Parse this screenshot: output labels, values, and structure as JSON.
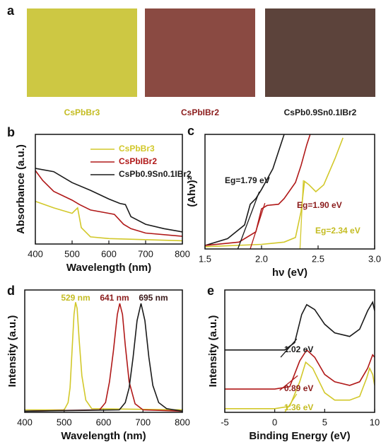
{
  "photos": {
    "panel_label": "a",
    "samples": [
      {
        "label": "CsPbBr3",
        "color": "#cdc843",
        "label_color": "#c4bc22"
      },
      {
        "label": "CsPbIBr2",
        "color": "#8a4a42",
        "label_color": "#8b1c1c"
      },
      {
        "label": "CsPb0.9Sn0.1IBr2",
        "color": "#5c433b",
        "label_color": "#1a1a1a"
      }
    ]
  },
  "chart_data": [
    {
      "type": "line",
      "panel_label": "b",
      "xlabel": "Wavelength (nm)",
      "ylabel": "Absorbance (a.u.)",
      "xlim": [
        400,
        800
      ],
      "xticks": [
        400,
        500,
        600,
        700,
        800
      ],
      "ylim": [
        0,
        1
      ],
      "series": [
        {
          "name": "CsPbBr3",
          "color": "#d2c82a",
          "x": [
            400,
            450,
            500,
            515,
            525,
            550,
            600,
            800
          ],
          "values": [
            0.39,
            0.33,
            0.28,
            0.33,
            0.15,
            0.065,
            0.05,
            0.03
          ]
        },
        {
          "name": "CsPbIBr2",
          "color": "#b01818",
          "x": [
            400,
            420,
            450,
            500,
            520,
            550,
            600,
            615,
            640,
            660,
            700,
            800
          ],
          "values": [
            0.67,
            0.58,
            0.48,
            0.4,
            0.36,
            0.31,
            0.28,
            0.27,
            0.18,
            0.14,
            0.1,
            0.07
          ]
        },
        {
          "name": "CsPb0.9Sn0.1IBr2",
          "color": "#1a1a1a",
          "x": [
            400,
            450,
            500,
            550,
            600,
            630,
            645,
            660,
            700,
            750,
            800
          ],
          "values": [
            0.69,
            0.66,
            0.56,
            0.49,
            0.41,
            0.37,
            0.36,
            0.25,
            0.18,
            0.14,
            0.11
          ]
        }
      ]
    },
    {
      "type": "line",
      "panel_label": "c",
      "xlabel": "hν (eV)",
      "ylabel": "(Ahν)²",
      "xlim": [
        1.5,
        3.0
      ],
      "xticks": [
        1.5,
        {
          "value": 2.0,
          "label": "2.0"
        },
        2.5,
        {
          "value": 3.0,
          "label": "3.0"
        }
      ],
      "ylim": [
        0,
        1
      ],
      "series": [
        {
          "color": "#1a1a1a",
          "x": [
            1.5,
            1.7,
            1.85,
            1.9,
            1.95,
            2.0,
            2.05,
            2.1,
            2.15,
            2.2
          ],
          "values": [
            0.03,
            0.09,
            0.21,
            0.39,
            0.44,
            0.52,
            0.61,
            0.7,
            0.85,
            1.0
          ]
        },
        {
          "color": "#b01818",
          "x": [
            1.5,
            1.8,
            1.95,
            2.0,
            2.05,
            2.15,
            2.2,
            2.3,
            2.35,
            2.4,
            2.43
          ],
          "values": [
            0.03,
            0.06,
            0.15,
            0.35,
            0.38,
            0.39,
            0.44,
            0.58,
            0.73,
            0.91,
            1.0
          ]
        },
        {
          "color": "#d2c82a",
          "x": [
            1.5,
            2.0,
            2.2,
            2.3,
            2.35,
            2.38,
            2.42,
            2.48,
            2.55,
            2.65,
            2.72
          ],
          "values": [
            0.02,
            0.04,
            0.06,
            0.1,
            0.33,
            0.59,
            0.56,
            0.5,
            0.56,
            0.79,
            0.97
          ]
        }
      ],
      "fit_lines": [
        {
          "color": "#1a1a1a",
          "x": [
            1.79,
            1.98
          ],
          "values": [
            0,
            0.5
          ]
        },
        {
          "color": "#b01818",
          "x": [
            1.9,
            2.03
          ],
          "values": [
            0,
            0.4
          ]
        },
        {
          "color": "#d2c82a",
          "x": [
            2.34,
            2.37
          ],
          "values": [
            0,
            0.6
          ]
        }
      ],
      "annotations": [
        {
          "text": "Eg=1.79 eV",
          "color": "#1a1a1a"
        },
        {
          "text": "Eg=1.90 eV",
          "color": "#8b1c1c"
        },
        {
          "text": "Eg=2.34 eV",
          "color": "#c4bc22"
        }
      ]
    },
    {
      "type": "line",
      "panel_label": "d",
      "xlabel": "Wavelength (nm)",
      "ylabel": "Intensity (a.u.)",
      "xlim": [
        400,
        800
      ],
      "xticks": [
        400,
        500,
        600,
        700,
        800
      ],
      "ylim": [
        0,
        1
      ],
      "series": [
        {
          "color": "#d2c82a",
          "x": [
            400,
            500,
            510,
            515,
            520,
            525,
            529,
            533,
            538,
            545,
            555,
            570,
            800
          ],
          "values": [
            0.02,
            0.02,
            0.08,
            0.2,
            0.5,
            0.8,
            0.9,
            0.85,
            0.6,
            0.3,
            0.1,
            0.03,
            0.02
          ]
        },
        {
          "color": "#b01818",
          "x": [
            400,
            590,
            605,
            615,
            625,
            635,
            641,
            648,
            655,
            665,
            680,
            700,
            800
          ],
          "values": [
            0.01,
            0.02,
            0.08,
            0.25,
            0.5,
            0.8,
            0.89,
            0.8,
            0.55,
            0.25,
            0.07,
            0.02,
            0.01
          ]
        },
        {
          "color": "#1a1a1a",
          "x": [
            400,
            640,
            655,
            665,
            675,
            685,
            695,
            705,
            715,
            725,
            740,
            760,
            800
          ],
          "values": [
            0.01,
            0.02,
            0.08,
            0.2,
            0.45,
            0.75,
            0.89,
            0.75,
            0.45,
            0.22,
            0.08,
            0.03,
            0.01
          ]
        }
      ],
      "annotations": [
        {
          "text": "529 nm",
          "color": "#c4bc22"
        },
        {
          "text": "641 nm",
          "color": "#8b1c1c"
        },
        {
          "text": "695 nm",
          "color": "#3a1a1a"
        }
      ]
    },
    {
      "type": "line",
      "panel_label": "e",
      "xlabel": "Binding Energy (eV)",
      "ylabel": "Intensity (a.u.)",
      "xlim": [
        -5,
        10
      ],
      "xticks": [
        -5,
        0,
        5,
        10
      ],
      "ylim": [
        0,
        1
      ],
      "series": [
        {
          "color": "#1a1a1a",
          "x": [
            -5,
            0,
            1,
            2,
            2.7,
            3.2,
            4,
            5,
            6,
            7.5,
            8.5,
            9.3,
            9.8,
            10
          ],
          "values": [
            0.51,
            0.51,
            0.51,
            0.57,
            0.8,
            0.88,
            0.84,
            0.72,
            0.65,
            0.62,
            0.68,
            0.83,
            0.9,
            0.83
          ]
        },
        {
          "color": "#b01818",
          "x": [
            -5,
            0,
            1.5,
            2.5,
            3.2,
            4,
            5,
            6,
            7.5,
            8.5,
            9.3,
            9.8,
            10
          ],
          "values": [
            0.19,
            0.19,
            0.21,
            0.42,
            0.51,
            0.45,
            0.31,
            0.25,
            0.22,
            0.25,
            0.36,
            0.47,
            0.45
          ]
        },
        {
          "color": "#d2c82a",
          "x": [
            -5,
            0,
            1.5,
            2.5,
            3.1,
            3.8,
            5,
            6,
            7.5,
            8.5,
            9.2,
            9.5,
            9.8,
            10
          ],
          "values": [
            0.03,
            0.03,
            0.05,
            0.25,
            0.41,
            0.36,
            0.16,
            0.1,
            0.1,
            0.13,
            0.28,
            0.36,
            0.31,
            0.22
          ]
        }
      ],
      "fit_lines": [
        {
          "color": "#1a1a1a",
          "x": [
            0.6,
            2.2
          ],
          "values": [
            0.45,
            0.6
          ]
        },
        {
          "color": "#b01818",
          "x": [
            0.5,
            2.3
          ],
          "values": [
            0.18,
            0.3
          ]
        },
        {
          "color": "#d2c82a",
          "x": [
            1.0,
            2.2
          ],
          "values": [
            0.0,
            0.15
          ]
        }
      ],
      "annotations": [
        {
          "text": "1.02 eV",
          "color": "#1a1a1a"
        },
        {
          "text": "0.89 eV",
          "color": "#8b1c1c"
        },
        {
          "text": "1.36 eV",
          "color": "#c4bc22"
        }
      ]
    }
  ]
}
